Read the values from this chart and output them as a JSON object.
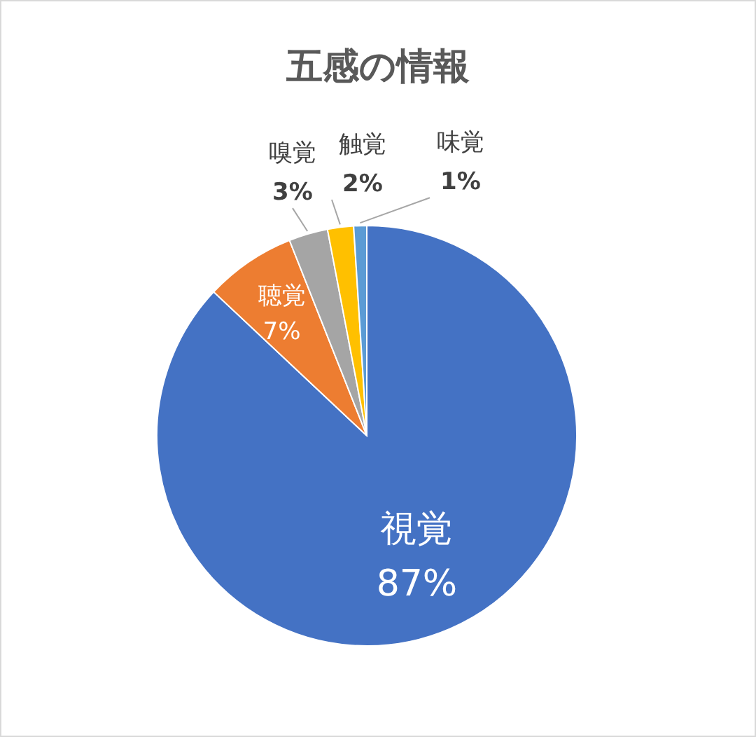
{
  "chart_data": {
    "type": "pie",
    "title": "五感の情報",
    "categories": [
      "視覚",
      "聴覚",
      "嗅覚",
      "触覚",
      "味覚"
    ],
    "values": [
      87,
      7,
      3,
      2,
      1
    ],
    "value_labels": [
      "87%",
      "7%",
      "3%",
      "2%",
      "1%"
    ],
    "colors": [
      "#4472c4",
      "#ed7d31",
      "#a5a5a5",
      "#ffc000",
      "#5b9bd5"
    ]
  }
}
